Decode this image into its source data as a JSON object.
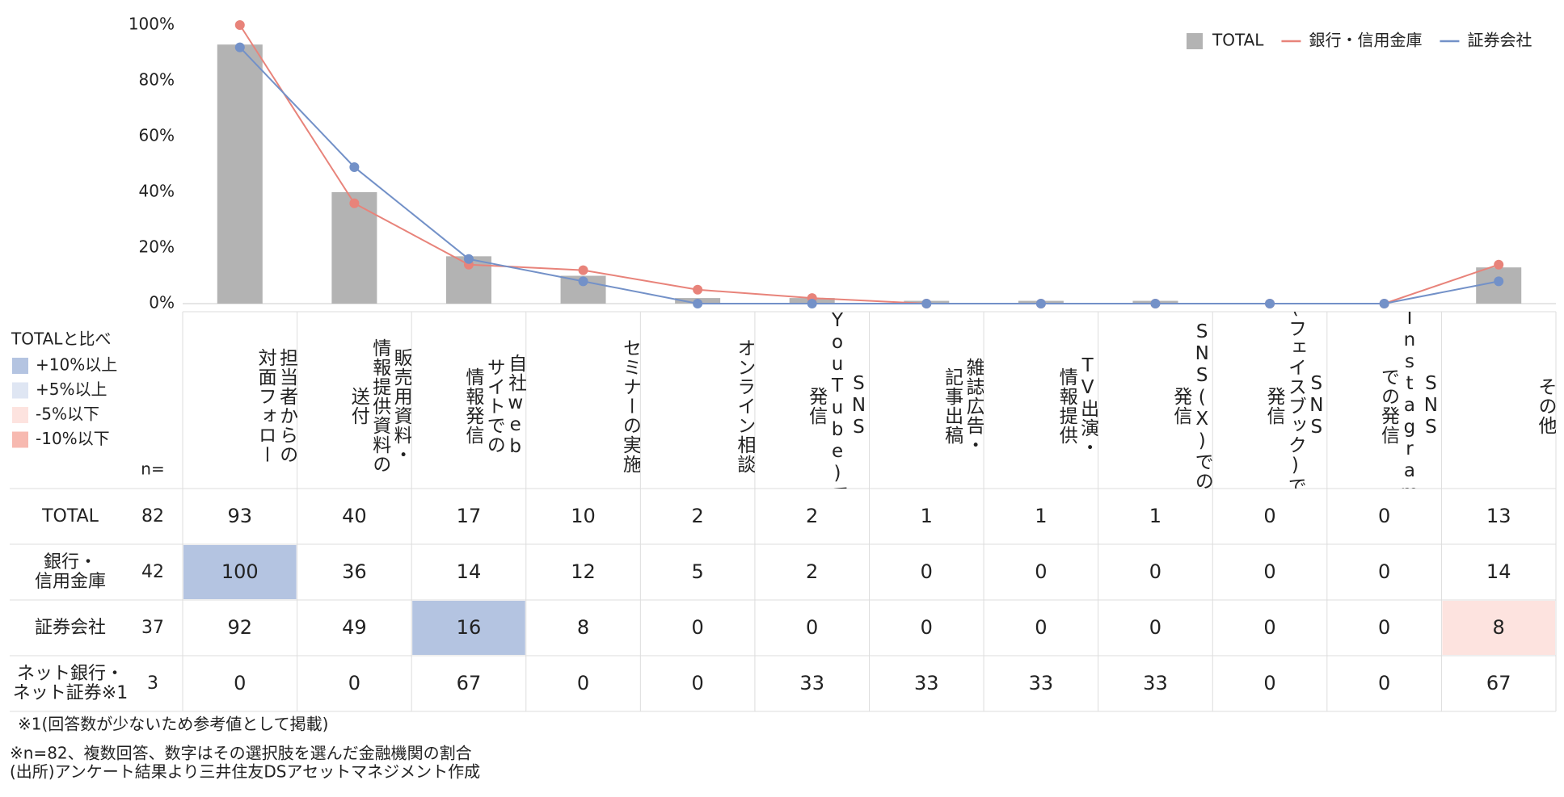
{
  "chart_data": {
    "type": "bar",
    "categories": [
      "担当者からの\n対面フォロー",
      "販売用資料・\n情報提供資料の\n送付",
      "自社web\nサイトでの\n情報発信",
      "セミナーの実施",
      "オンライン相談",
      "SNS\n(YouTube)での\n発信",
      "雑誌広告・\n記事出稿",
      "TV出演・\n情報提供",
      "SNS(X)での\n発信",
      "SNS\n(フェイスブック)での\n発信",
      "SNS\n(Instagram)\nでの発信",
      "その他"
    ],
    "series": [
      {
        "name": "TOTAL",
        "type": "bar",
        "color": "#b3b3b3",
        "values": [
          93,
          40,
          17,
          10,
          2,
          2,
          1,
          1,
          1,
          0,
          0,
          13
        ]
      },
      {
        "name": "銀行・信用金庫",
        "type": "line",
        "color": "#e8837a",
        "values": [
          100,
          36,
          14,
          12,
          5,
          2,
          0,
          0,
          0,
          0,
          0,
          14
        ]
      },
      {
        "name": "証券会社",
        "type": "line",
        "color": "#7391c8",
        "values": [
          92,
          49,
          16,
          8,
          0,
          0,
          0,
          0,
          0,
          0,
          0,
          8
        ]
      }
    ],
    "ylim": [
      0,
      100
    ],
    "yticks": [
      {
        "value": 0,
        "label": "0%"
      },
      {
        "value": 20,
        "label": "20%"
      },
      {
        "value": 40,
        "label": "40%"
      },
      {
        "value": 60,
        "label": "60%"
      },
      {
        "value": 80,
        "label": "80%"
      },
      {
        "value": 100,
        "label": "100%"
      }
    ],
    "grid": false,
    "legend": "top-right"
  },
  "table": {
    "n_label": "n=",
    "row_labels": [
      "TOTAL",
      "銀行・\n信用金庫",
      "証券会社",
      "ネット銀行・\nネット証券※1"
    ],
    "n": [
      82,
      42,
      37,
      3
    ],
    "extra_row_values": [
      0,
      0,
      67,
      0,
      0,
      33,
      33,
      33,
      33,
      0,
      0,
      67
    ],
    "comparison_legend": {
      "title": "TOTALと比べ",
      "items": [
        {
          "label": "+10%以上",
          "color": "#b4c4e1"
        },
        {
          "label": "+5%以上",
          "color": "#dfe6f3"
        },
        {
          "label": "-5%以下",
          "color": "#fde3df"
        },
        {
          "label": "-10%以下",
          "color": "#f7b9b0"
        }
      ]
    },
    "highlights": [
      {
        "series": 1,
        "index": 0,
        "item": 0
      },
      {
        "series": 2,
        "index": 2,
        "item": 0
      },
      {
        "series": 2,
        "index": 11,
        "item": 2
      }
    ]
  },
  "notes": [
    "※1(回答数が少ないため参考値として掲載)",
    "※n=82、複数回答、数字はその選択肢を選んだ金融機関の割合",
    "(出所)アンケート結果より三井住友DSアセットマネジメント作成"
  ]
}
